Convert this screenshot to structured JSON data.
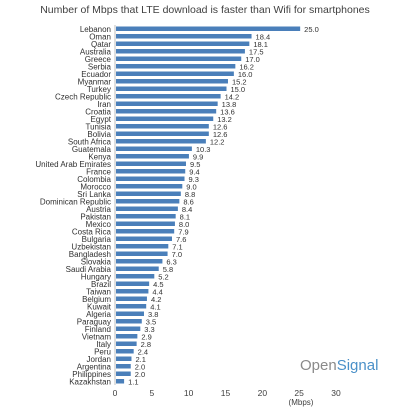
{
  "chart_data": {
    "type": "bar",
    "orientation": "horizontal",
    "title": "Number of Mbps that LTE download is faster than Wifi for smartphones",
    "xlabel": "(Mbps)",
    "xlim": [
      0,
      30
    ],
    "xticks": [
      0,
      5,
      10,
      15,
      20,
      25,
      30
    ],
    "grid": false,
    "bar_color": "#4a7fba",
    "categories": [
      "Lebanon",
      "Oman",
      "Qatar",
      "Australia",
      "Greece",
      "Serbia",
      "Ecuador",
      "Myanmar",
      "Turkey",
      "Czech Republic",
      "Iran",
      "Croatia",
      "Egypt",
      "Tunisia",
      "Bolivia",
      "South Africa",
      "Guatemala",
      "Kenya",
      "United Arab Emirates",
      "France",
      "Colombia",
      "Morocco",
      "Sri Lanka",
      "Dominican Republic",
      "Austria",
      "Pakistan",
      "Mexico",
      "Costa Rica",
      "Bulgaria",
      "Uzbekistan",
      "Bangladesh",
      "Slovakia",
      "Saudi Arabia",
      "Hungary",
      "Brazil",
      "Taiwan",
      "Belgium",
      "Kuwait",
      "Algeria",
      "Paraguay",
      "Finland",
      "Vietnam",
      "Italy",
      "Peru",
      "Jordan",
      "Argentina",
      "Philippines",
      "Kazakhstan"
    ],
    "values": [
      25.0,
      18.4,
      18.1,
      17.5,
      17.0,
      16.2,
      16.0,
      15.2,
      15.0,
      14.2,
      13.8,
      13.6,
      13.2,
      12.6,
      12.6,
      12.2,
      10.3,
      9.9,
      9.5,
      9.4,
      9.3,
      9.0,
      8.8,
      8.6,
      8.4,
      8.1,
      8.0,
      7.9,
      7.6,
      7.1,
      7.0,
      6.3,
      5.8,
      5.2,
      4.5,
      4.4,
      4.2,
      4.1,
      3.8,
      3.5,
      3.3,
      2.9,
      2.8,
      2.4,
      2.1,
      2.0,
      2.0,
      1.1
    ],
    "labels": [
      "25.0",
      "18.4",
      "18.1",
      "17.5",
      "17.0",
      "16.2",
      "16.0",
      "15.2",
      "15.0",
      "14.2",
      "13.8",
      "13.6",
      "13.2",
      "12.6",
      "12.6",
      "12.2",
      "10.3",
      "9.9",
      "9.5",
      "9.4",
      "9.3",
      "9.0",
      "8.8",
      "8.6",
      "8.4",
      "8.1",
      "8.0",
      "7.9",
      "7.6",
      "7.1",
      "7.0",
      "6.3",
      "5.8",
      "5.2",
      "4.5",
      "4.4",
      "4.2",
      "4.1",
      "3.8",
      "3.5",
      "3.3",
      "2.9",
      "2.8",
      "2.4",
      "2.1",
      "2.0",
      "2.0",
      "1.1"
    ]
  },
  "brand": {
    "part1": "Open",
    "part2": "Signal"
  }
}
